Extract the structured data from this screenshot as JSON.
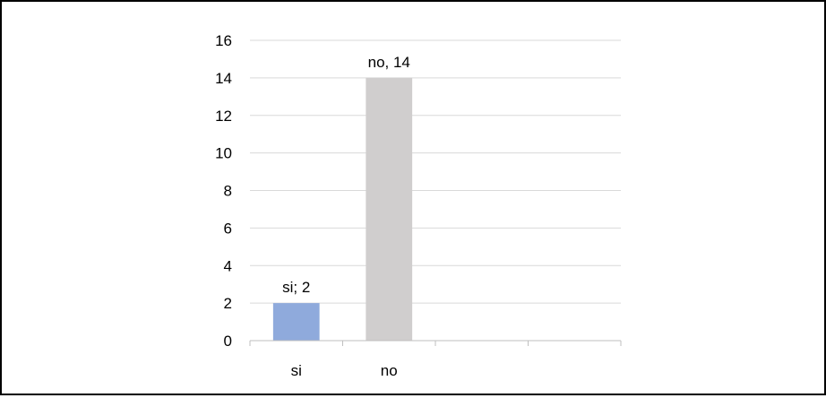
{
  "chart_data": {
    "type": "bar",
    "categories": [
      "si",
      "no",
      "",
      ""
    ],
    "values": [
      2,
      14,
      null,
      null
    ],
    "data_labels": [
      "si; 2",
      "no, 14",
      "",
      ""
    ],
    "colors": [
      "#8faadc",
      "#d0cece"
    ],
    "ylim": [
      0,
      16
    ],
    "yticks": [
      0,
      2,
      4,
      6,
      8,
      10,
      12,
      14,
      16
    ],
    "grid": true,
    "legend": "none",
    "title": "",
    "xlabel": "",
    "ylabel": ""
  }
}
